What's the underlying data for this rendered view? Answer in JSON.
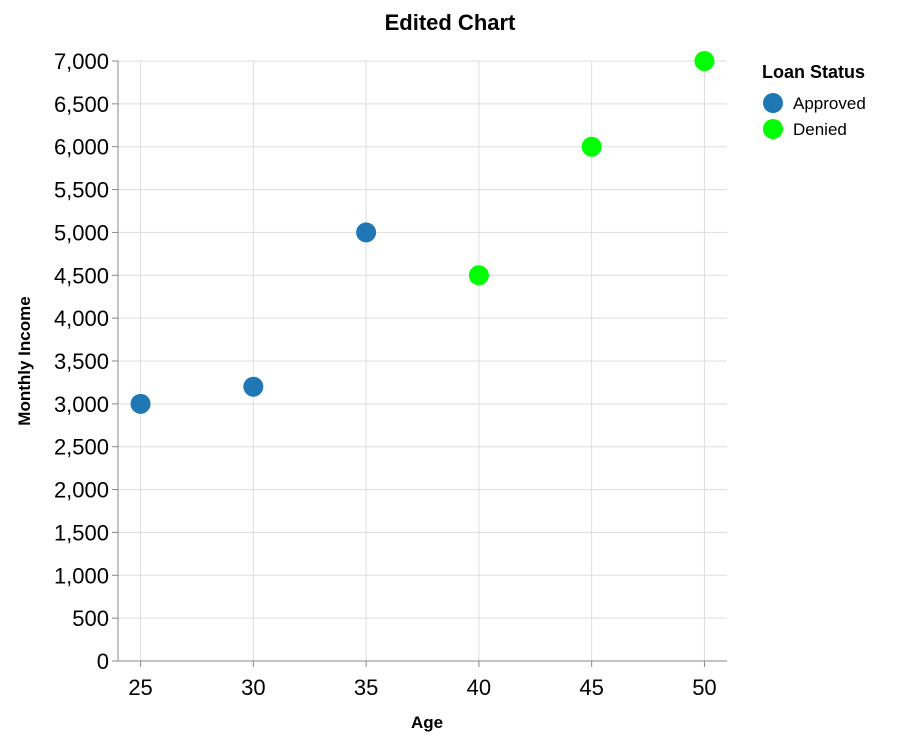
{
  "chart_data": {
    "type": "scatter",
    "title": "Edited Chart",
    "xlabel": "Age",
    "ylabel": "Monthly Income",
    "xlim": [
      24,
      51
    ],
    "ylim": [
      0,
      7000
    ],
    "x_ticks": [
      25,
      30,
      35,
      40,
      45,
      50
    ],
    "y_ticks": [
      0,
      500,
      1000,
      1500,
      2000,
      2500,
      3000,
      3500,
      4000,
      4500,
      5000,
      5500,
      6000,
      6500,
      7000
    ],
    "grid": true,
    "legend": {
      "title": "Loan Status",
      "placement": "top-right",
      "entries": [
        {
          "label": "Approved",
          "color": "#1f77b4"
        },
        {
          "label": "Denied",
          "color": "#00ff00"
        }
      ]
    },
    "points": [
      {
        "x": 25,
        "y": 3000,
        "status": "Approved"
      },
      {
        "x": 30,
        "y": 3200,
        "status": "Approved"
      },
      {
        "x": 35,
        "y": 5000,
        "status": "Approved"
      },
      {
        "x": 40,
        "y": 4500,
        "status": "Denied"
      },
      {
        "x": 45,
        "y": 6000,
        "status": "Denied"
      },
      {
        "x": 50,
        "y": 7000,
        "status": "Denied"
      }
    ]
  }
}
